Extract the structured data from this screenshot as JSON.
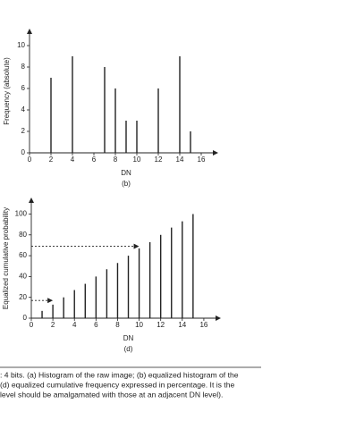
{
  "chart_data": [
    {
      "type": "bar",
      "xlabel": "DN",
      "label": "(b)",
      "ylabel": "Frequency (absolute)",
      "x": [
        2,
        4,
        7,
        8,
        9,
        10,
        12,
        14,
        15
      ],
      "values": [
        7,
        9,
        8,
        6,
        3,
        3,
        6,
        9,
        2
      ],
      "color": "#222",
      "xlim": [
        0,
        17.5
      ],
      "ylim": [
        0,
        11.5
      ],
      "xticks": [
        0,
        2,
        4,
        6,
        8,
        10,
        12,
        14,
        16
      ],
      "yticks": [
        0,
        2,
        4,
        6,
        8,
        10
      ]
    },
    {
      "type": "bar",
      "xlabel": "DN",
      "label": "(d)",
      "ylabel": "Equalized cumulative probability",
      "x": [
        1,
        2,
        3,
        4,
        5,
        6,
        7,
        8,
        9,
        10,
        11,
        12,
        13,
        14,
        15
      ],
      "values": [
        7,
        13,
        20,
        27,
        33,
        40,
        47,
        53,
        60,
        67,
        73,
        80,
        87,
        93,
        100
      ],
      "color": "#222",
      "xlim": [
        0,
        17.5
      ],
      "ylim": [
        0,
        115
      ],
      "xticks": [
        0,
        2,
        4,
        6,
        8,
        10,
        12,
        14,
        16
      ],
      "yticks": [
        0,
        20,
        40,
        60,
        80,
        100
      ],
      "arrows": [
        {
          "y": 17,
          "x": 2
        },
        {
          "y": 69,
          "x": 10
        }
      ]
    }
  ],
  "caption": {
    "lines": [
      ": 4 bits. (a) Histogram of the raw image; (b) equalized histogram of the",
      "(d) equalized cumulative frequency expressed in percentage. It is the",
      "level should be amalgamated with those at an adjacent DN level)."
    ]
  }
}
